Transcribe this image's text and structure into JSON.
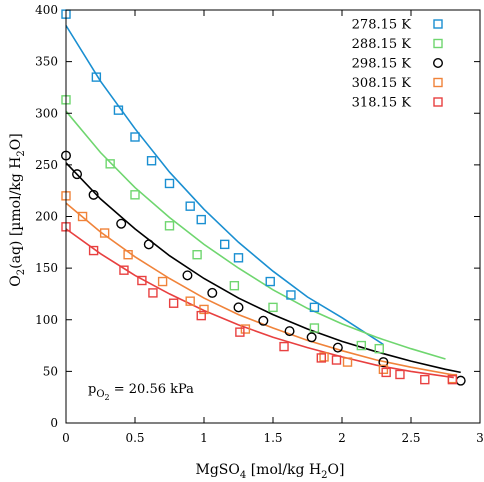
{
  "chart_data": {
    "type": "scatter",
    "xlabel_main": "MgSO",
    "xlabel_sub": "4",
    "xlabel_tail": " [mol/kg H",
    "xlabel_sub2": "2",
    "xlabel_end": "O]",
    "ylabel_main": "O",
    "ylabel_sub": "2",
    "ylabel_tail": "(aq) [µmol/kg H",
    "ylabel_sub2": "2",
    "ylabel_end": "O]",
    "annotation_main": "p",
    "annotation_sub": "O",
    "annotation_subsub": "2",
    "annotation_tail": " = 20.56 kPa",
    "xlim": [
      0,
      3
    ],
    "ylim": [
      0,
      400
    ],
    "xticks": [
      0,
      0.5,
      1,
      1.5,
      2,
      2.5,
      3
    ],
    "xtick_labels": [
      "0",
      "0.5",
      "1",
      "1.5",
      "2",
      "2.5",
      "3"
    ],
    "yticks": [
      0,
      50,
      100,
      150,
      200,
      250,
      300,
      350,
      400
    ],
    "ytick_labels": [
      "0",
      "50",
      "100",
      "150",
      "200",
      "250",
      "300",
      "350",
      "400"
    ],
    "legend_position": "top-right",
    "series": [
      {
        "name": "278.15 K",
        "color": "#1a8fd1",
        "marker": "square",
        "points": [
          [
            0,
            396
          ],
          [
            0.22,
            335
          ],
          [
            0.38,
            303
          ],
          [
            0.5,
            277
          ],
          [
            0.62,
            254
          ],
          [
            0.75,
            232
          ],
          [
            0.9,
            210
          ],
          [
            0.98,
            197
          ],
          [
            1.15,
            173
          ],
          [
            1.25,
            160
          ],
          [
            1.48,
            137
          ],
          [
            1.63,
            124
          ],
          [
            1.8,
            112
          ]
        ],
        "fit": [
          [
            0,
            385
          ],
          [
            0.25,
            331
          ],
          [
            0.5,
            285
          ],
          [
            0.75,
            243
          ],
          [
            1.0,
            207
          ],
          [
            1.25,
            175
          ],
          [
            1.5,
            147
          ],
          [
            1.75,
            122
          ],
          [
            2.0,
            102
          ],
          [
            2.3,
            76
          ]
        ]
      },
      {
        "name": "288.15 K",
        "color": "#6fd66f",
        "marker": "square",
        "points": [
          [
            0,
            313
          ],
          [
            0.32,
            251
          ],
          [
            0.5,
            221
          ],
          [
            0.75,
            191
          ],
          [
            0.95,
            163
          ],
          [
            1.22,
            133
          ],
          [
            1.5,
            112
          ],
          [
            1.8,
            92
          ],
          [
            2.14,
            75
          ],
          [
            2.27,
            72
          ]
        ],
        "fit": [
          [
            0,
            302
          ],
          [
            0.25,
            262
          ],
          [
            0.5,
            228
          ],
          [
            0.75,
            199
          ],
          [
            1.0,
            173
          ],
          [
            1.25,
            150
          ],
          [
            1.5,
            129
          ],
          [
            1.75,
            111
          ],
          [
            2.0,
            96
          ],
          [
            2.25,
            83
          ],
          [
            2.5,
            72
          ],
          [
            2.75,
            62
          ]
        ]
      },
      {
        "name": "298.15 K",
        "color": "#000000",
        "marker": "circle",
        "points": [
          [
            0,
            259
          ],
          [
            0.08,
            241
          ],
          [
            0.2,
            221
          ],
          [
            0.4,
            193
          ],
          [
            0.6,
            173
          ],
          [
            0.88,
            143
          ],
          [
            1.06,
            126
          ],
          [
            1.25,
            112
          ],
          [
            1.43,
            99
          ],
          [
            1.62,
            89
          ],
          [
            1.78,
            83
          ],
          [
            1.97,
            73
          ],
          [
            2.3,
            59
          ],
          [
            2.86,
            41
          ]
        ],
        "fit": [
          [
            0,
            252
          ],
          [
            0.25,
            217
          ],
          [
            0.5,
            188
          ],
          [
            0.75,
            162
          ],
          [
            1.0,
            140
          ],
          [
            1.25,
            121
          ],
          [
            1.5,
            105
          ],
          [
            1.75,
            91
          ],
          [
            2.0,
            79
          ],
          [
            2.25,
            69
          ],
          [
            2.5,
            60
          ],
          [
            2.75,
            52
          ],
          [
            2.86,
            49
          ]
        ]
      },
      {
        "name": "308.15 K",
        "color": "#f0833a",
        "marker": "square",
        "points": [
          [
            0,
            220
          ],
          [
            0.12,
            200
          ],
          [
            0.28,
            184
          ],
          [
            0.45,
            163
          ],
          [
            0.7,
            137
          ],
          [
            0.9,
            118
          ],
          [
            1.0,
            110
          ],
          [
            1.3,
            91
          ],
          [
            1.87,
            64
          ],
          [
            2.04,
            59
          ],
          [
            2.3,
            52
          ],
          [
            2.8,
            43
          ]
        ],
        "fit": [
          [
            0,
            213
          ],
          [
            0.25,
            185
          ],
          [
            0.5,
            161
          ],
          [
            0.75,
            140
          ],
          [
            1.0,
            121
          ],
          [
            1.25,
            105
          ],
          [
            1.5,
            92
          ],
          [
            1.75,
            80
          ],
          [
            2.0,
            70
          ],
          [
            2.25,
            61
          ],
          [
            2.5,
            54
          ],
          [
            2.83,
            46
          ]
        ]
      },
      {
        "name": "318.15 K",
        "color": "#e84040",
        "marker": "square",
        "points": [
          [
            0,
            190
          ],
          [
            0.2,
            167
          ],
          [
            0.42,
            148
          ],
          [
            0.55,
            138
          ],
          [
            0.63,
            126
          ],
          [
            0.78,
            116
          ],
          [
            0.98,
            104
          ],
          [
            1.26,
            88
          ],
          [
            1.58,
            74
          ],
          [
            1.85,
            63
          ],
          [
            1.96,
            61
          ],
          [
            2.32,
            49
          ],
          [
            2.42,
            47
          ],
          [
            2.6,
            42
          ],
          [
            2.8,
            42
          ]
        ],
        "fit": [
          [
            0,
            188
          ],
          [
            0.25,
            164
          ],
          [
            0.5,
            143
          ],
          [
            0.75,
            125
          ],
          [
            1.0,
            109
          ],
          [
            1.25,
            95
          ],
          [
            1.5,
            83
          ],
          [
            1.75,
            73
          ],
          [
            2.0,
            64
          ],
          [
            2.25,
            56
          ],
          [
            2.5,
            50
          ],
          [
            2.81,
            44
          ]
        ]
      }
    ]
  }
}
